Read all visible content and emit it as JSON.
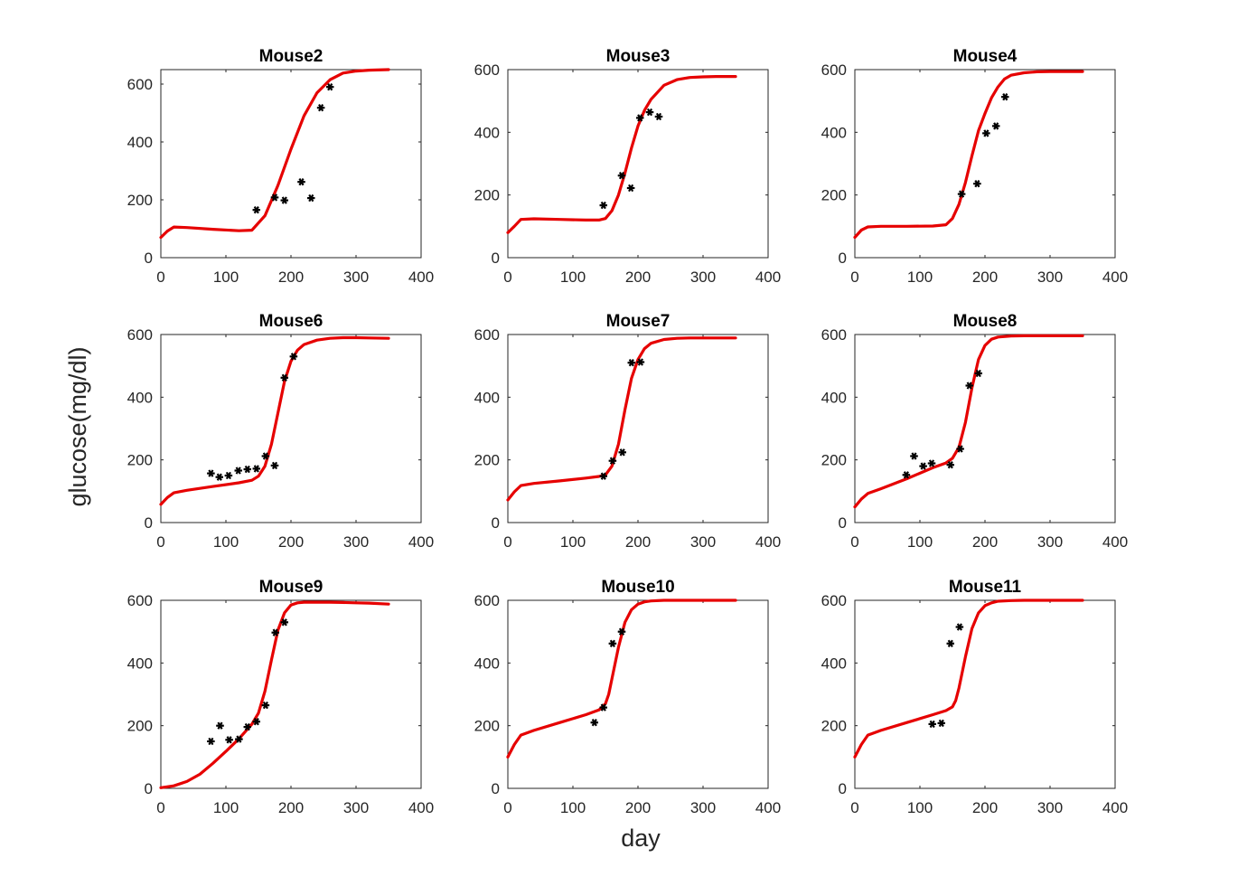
{
  "figure": {
    "ylabel": "glucose(mg/dl)",
    "xlabel": "day"
  },
  "colors": {
    "model_line": "#e60000",
    "data_marker": "#000000",
    "axis": "#262626"
  },
  "chart_data": [
    {
      "type": "line",
      "title": "Mouse2",
      "xlim": [
        0,
        400
      ],
      "ylim": [
        0,
        650
      ],
      "xticks": [
        0,
        100,
        200,
        300,
        400
      ],
      "yticks": [
        0,
        200,
        400,
        600
      ],
      "model": {
        "x": [
          0,
          10,
          20,
          40,
          80,
          120,
          140,
          160,
          180,
          200,
          220,
          240,
          260,
          280,
          300,
          320,
          350
        ],
        "y": [
          70,
          92,
          106,
          104,
          98,
          93,
          95,
          145,
          250,
          375,
          490,
          570,
          615,
          638,
          645,
          648,
          650
        ]
      },
      "observed": {
        "x": [
          147,
          175,
          190,
          216,
          231,
          246,
          260
        ],
        "y": [
          165,
          208,
          198,
          262,
          206,
          518,
          590
        ]
      }
    },
    {
      "type": "line",
      "title": "Mouse3",
      "xlim": [
        0,
        400
      ],
      "ylim": [
        0,
        600
      ],
      "xticks": [
        0,
        100,
        200,
        300,
        400
      ],
      "yticks": [
        0,
        200,
        400,
        600
      ],
      "model": {
        "x": [
          0,
          10,
          20,
          40,
          80,
          120,
          140,
          150,
          160,
          170,
          180,
          190,
          200,
          210,
          220,
          240,
          260,
          280,
          300,
          320,
          350
        ],
        "y": [
          80,
          100,
          122,
          124,
          122,
          120,
          120,
          125,
          150,
          200,
          270,
          350,
          420,
          470,
          505,
          550,
          568,
          575,
          577,
          578,
          578
        ]
      },
      "observed": {
        "x": [
          147,
          175,
          189,
          203,
          218,
          232
        ],
        "y": [
          167,
          262,
          222,
          446,
          464,
          450
        ]
      }
    },
    {
      "type": "line",
      "title": "Mouse4",
      "xlim": [
        0,
        400
      ],
      "ylim": [
        0,
        600
      ],
      "xticks": [
        0,
        100,
        200,
        300,
        400
      ],
      "yticks": [
        0,
        200,
        400,
        600
      ],
      "model": {
        "x": [
          0,
          10,
          20,
          40,
          80,
          120,
          140,
          150,
          160,
          170,
          180,
          190,
          200,
          210,
          220,
          230,
          240,
          260,
          280,
          300,
          350
        ],
        "y": [
          65,
          88,
          98,
          100,
          100,
          101,
          105,
          125,
          170,
          240,
          325,
          405,
          460,
          510,
          545,
          570,
          582,
          590,
          593,
          594,
          594
        ]
      },
      "observed": {
        "x": [
          164,
          188,
          202,
          217,
          231
        ],
        "y": [
          203,
          236,
          397,
          420,
          513
        ]
      }
    },
    {
      "type": "line",
      "title": "Mouse6",
      "xlim": [
        0,
        400
      ],
      "ylim": [
        0,
        600
      ],
      "xticks": [
        0,
        100,
        200,
        300,
        400
      ],
      "yticks": [
        0,
        200,
        400,
        600
      ],
      "model": {
        "x": [
          0,
          10,
          20,
          40,
          80,
          120,
          140,
          150,
          160,
          170,
          180,
          190,
          200,
          210,
          220,
          240,
          260,
          280,
          300,
          320,
          350
        ],
        "y": [
          58,
          80,
          95,
          103,
          115,
          127,
          135,
          148,
          180,
          250,
          350,
          450,
          515,
          550,
          568,
          582,
          588,
          590,
          590,
          589,
          588
        ]
      },
      "observed": {
        "x": [
          77,
          90,
          104,
          119,
          133,
          147,
          161,
          175,
          190,
          204
        ],
        "y": [
          157,
          145,
          150,
          166,
          170,
          172,
          212,
          182,
          462,
          530
        ]
      }
    },
    {
      "type": "line",
      "title": "Mouse7",
      "xlim": [
        0,
        400
      ],
      "ylim": [
        0,
        600
      ],
      "xticks": [
        0,
        100,
        200,
        300,
        400
      ],
      "yticks": [
        0,
        200,
        400,
        600
      ],
      "model": {
        "x": [
          0,
          10,
          20,
          40,
          80,
          120,
          140,
          150,
          160,
          170,
          180,
          190,
          200,
          210,
          220,
          240,
          260,
          280,
          300,
          320,
          350
        ],
        "y": [
          72,
          98,
          118,
          125,
          133,
          142,
          147,
          152,
          180,
          250,
          360,
          460,
          520,
          555,
          572,
          584,
          588,
          589,
          589,
          589,
          589
        ]
      },
      "observed": {
        "x": [
          147,
          161,
          176,
          190,
          204
        ],
        "y": [
          148,
          197,
          224,
          510,
          512
        ]
      }
    },
    {
      "type": "line",
      "title": "Mouse8",
      "xlim": [
        0,
        400
      ],
      "ylim": [
        0,
        600
      ],
      "xticks": [
        0,
        100,
        200,
        300,
        400
      ],
      "yticks": [
        0,
        200,
        400,
        600
      ],
      "model": {
        "x": [
          0,
          10,
          20,
          40,
          80,
          120,
          140,
          150,
          160,
          170,
          180,
          190,
          200,
          210,
          220,
          240,
          260,
          280,
          300,
          320,
          350
        ],
        "y": [
          50,
          75,
          93,
          108,
          140,
          175,
          190,
          205,
          240,
          320,
          430,
          520,
          565,
          585,
          592,
          595,
          596,
          596,
          596,
          596,
          596
        ]
      },
      "observed": {
        "x": [
          79,
          91,
          105,
          118,
          147,
          162,
          176,
          190
        ],
        "y": [
          152,
          212,
          180,
          189,
          184,
          235,
          437,
          476
        ]
      }
    },
    {
      "type": "line",
      "title": "Mouse9",
      "xlim": [
        0,
        400
      ],
      "ylim": [
        0,
        600
      ],
      "xticks": [
        0,
        100,
        200,
        300,
        400
      ],
      "yticks": [
        0,
        200,
        400,
        600
      ],
      "model": {
        "x": [
          0,
          20,
          40,
          60,
          80,
          100,
          120,
          140,
          150,
          160,
          170,
          180,
          190,
          200,
          210,
          220,
          240,
          260,
          280,
          300,
          320,
          350
        ],
        "y": [
          2,
          8,
          22,
          45,
          80,
          118,
          158,
          205,
          240,
          310,
          410,
          505,
          560,
          585,
          592,
          594,
          594,
          594,
          593,
          592,
          591,
          588
        ]
      },
      "observed": {
        "x": [
          77,
          91,
          105,
          120,
          133,
          147,
          161,
          176,
          190
        ],
        "y": [
          150,
          200,
          155,
          157,
          196,
          213,
          265,
          497,
          530
        ]
      }
    },
    {
      "type": "line",
      "title": "Mouse10",
      "xlim": [
        0,
        400
      ],
      "ylim": [
        0,
        600
      ],
      "xticks": [
        0,
        100,
        200,
        300,
        400
      ],
      "yticks": [
        0,
        200,
        400,
        600
      ],
      "model": {
        "x": [
          0,
          10,
          20,
          40,
          80,
          120,
          140,
          150,
          155,
          160,
          170,
          180,
          190,
          200,
          210,
          220,
          240,
          260,
          280,
          300,
          320,
          350
        ],
        "y": [
          100,
          140,
          170,
          185,
          210,
          235,
          250,
          270,
          300,
          350,
          450,
          530,
          570,
          588,
          595,
          598,
          600,
          600,
          600,
          600,
          600,
          600
        ]
      },
      "observed": {
        "x": [
          133,
          147,
          161,
          175
        ],
        "y": [
          210,
          258,
          462,
          500
        ]
      }
    },
    {
      "type": "line",
      "title": "Mouse11",
      "xlim": [
        0,
        400
      ],
      "ylim": [
        0,
        600
      ],
      "xticks": [
        0,
        100,
        200,
        300,
        400
      ],
      "yticks": [
        0,
        200,
        400,
        600
      ],
      "model": {
        "x": [
          0,
          10,
          20,
          40,
          80,
          120,
          140,
          150,
          155,
          160,
          170,
          180,
          190,
          200,
          210,
          220,
          240,
          260,
          280,
          300,
          320,
          350
        ],
        "y": [
          100,
          140,
          170,
          185,
          210,
          235,
          248,
          260,
          280,
          320,
          420,
          510,
          560,
          583,
          592,
          597,
          599,
          600,
          600,
          600,
          600,
          600
        ]
      },
      "observed": {
        "x": [
          119,
          133,
          147,
          161
        ],
        "y": [
          205,
          208,
          462,
          515
        ]
      }
    }
  ]
}
